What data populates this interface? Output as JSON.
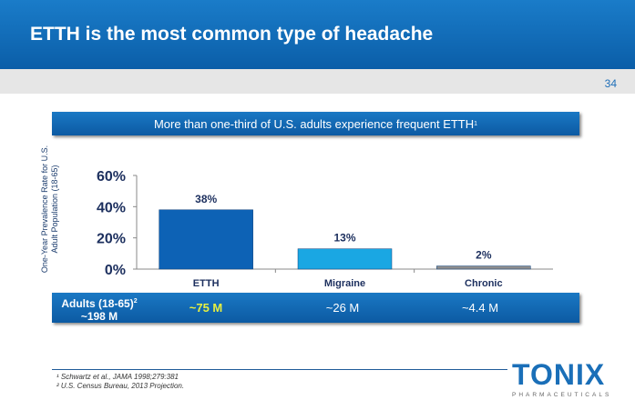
{
  "header": {
    "title": "ETTH is the most common type of headache",
    "page_number": "34"
  },
  "subtitle": {
    "text": "More than one-third of U.S. adults experience frequent ETTH",
    "sup": "1"
  },
  "chart_data": {
    "type": "bar",
    "categories": [
      "ETTH",
      "Migraine",
      "Chronic"
    ],
    "values": [
      38,
      13,
      2
    ],
    "data_labels": [
      "38%",
      "13%",
      "2%"
    ],
    "ylabel": "One-Year Prevalence Rate for U.S. Adult Population (18-65)",
    "ylim": [
      0,
      60
    ],
    "yticks": [
      "0%",
      "20%",
      "40%",
      "60%"
    ],
    "ytick_values": [
      0,
      20,
      40,
      60
    ],
    "colors": [
      "#0d62b5",
      "#1aa7e3",
      "#8c8c8c"
    ]
  },
  "population": {
    "label": "Adults (18-65)",
    "label_sup": "2",
    "total": "~198 M",
    "values": [
      "~75 M",
      "~26 M",
      "~4.4 M"
    ],
    "highlight_color": "#e8f040"
  },
  "footnotes": [
    "¹ Schwartz et al., JAMA 1998;279:381",
    "² U.S. Census Bureau, 2013 Projection."
  ],
  "logo": {
    "name": "TONIX",
    "tagline": "PHARMACEUTICALS"
  }
}
